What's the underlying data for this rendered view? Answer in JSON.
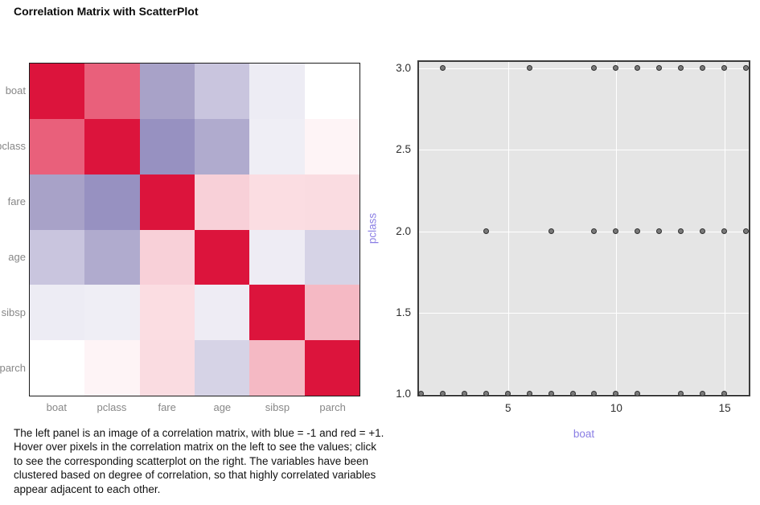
{
  "page": {
    "title": "Correlation Matrix with ScatterPlot"
  },
  "caption": "The left panel is an image of a correlation matrix, with blue = -1 and red = +1. Hover over pixels in the correlation matrix on the left to see the values; click to see the corresponding scatterplot on the right. The variables have been clustered based on degree of correlation, so that highly correlated variables appear adjacent to each other.",
  "colors": {
    "diagonal_red": "#dc143c",
    "axis_label_purple": "#8a7ee4",
    "matrix_label_gray": "#878787",
    "tick_label_dark": "#2e2e2e",
    "plot_background": "#e5e5e5",
    "gridline_white": "#ffffff",
    "point_fill": "#7a7a7a",
    "point_stroke": "#2f2f2f"
  },
  "chart_data": [
    {
      "type": "heatmap",
      "name": "correlation-matrix",
      "legend_note": "blue = -1, red = +1, variables clustered by degree of correlation",
      "variables": [
        "boat",
        "pclass",
        "fare",
        "age",
        "sibsp",
        "parch"
      ],
      "cell_colors": [
        [
          "#dc143c",
          "#e9607b",
          "#a8a2c8",
          "#c9c5de",
          "#edecf4",
          "#ffffff"
        ],
        [
          "#e9607b",
          "#dc143c",
          "#9791c1",
          "#b0abce",
          "#efeef5",
          "#fef4f6"
        ],
        [
          "#a8a2c8",
          "#9791c1",
          "#dc143c",
          "#f8d0d8",
          "#fbdde2",
          "#fadce1"
        ],
        [
          "#c9c5de",
          "#b0abce",
          "#f8d0d8",
          "#dc143c",
          "#eeecf4",
          "#d6d3e6"
        ],
        [
          "#edecf4",
          "#efeef5",
          "#fbdde2",
          "#eeecf4",
          "#dc143c",
          "#f5b9c4"
        ],
        [
          "#ffffff",
          "#fef4f6",
          "#fadce1",
          "#d6d3e6",
          "#f5b9c4",
          "#dc143c"
        ]
      ]
    },
    {
      "type": "scatter",
      "name": "boat-vs-pclass",
      "xlabel": "boat",
      "ylabel": "pclass",
      "x_ticks": [
        5,
        10,
        15
      ],
      "y_ticks": [
        3.0,
        2.5,
        2.0,
        1.5,
        1.0
      ],
      "xlim": [
        0.815,
        16.185
      ],
      "ylim": [
        0.985,
        3.05
      ],
      "grid": true,
      "points": [
        [
          1,
          1
        ],
        [
          2,
          1
        ],
        [
          3,
          1
        ],
        [
          4,
          1
        ],
        [
          5,
          1
        ],
        [
          6,
          1
        ],
        [
          7,
          1
        ],
        [
          8,
          1
        ],
        [
          9,
          1
        ],
        [
          10,
          1
        ],
        [
          11,
          1
        ],
        [
          13,
          1
        ],
        [
          14,
          1
        ],
        [
          15,
          1
        ],
        [
          4,
          2
        ],
        [
          7,
          2
        ],
        [
          9,
          2
        ],
        [
          10,
          2
        ],
        [
          11,
          2
        ],
        [
          12,
          2
        ],
        [
          13,
          2
        ],
        [
          14,
          2
        ],
        [
          15,
          2
        ],
        [
          16,
          2
        ],
        [
          2,
          3
        ],
        [
          6,
          3
        ],
        [
          9,
          3
        ],
        [
          10,
          3
        ],
        [
          11,
          3
        ],
        [
          12,
          3
        ],
        [
          13,
          3
        ],
        [
          14,
          3
        ],
        [
          15,
          3
        ],
        [
          16,
          3
        ]
      ]
    }
  ]
}
